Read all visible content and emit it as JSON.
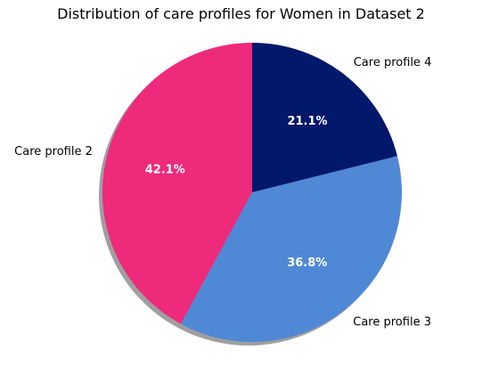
{
  "chart_data": {
    "type": "pie",
    "title": "Distribution of care profiles for Women in Dataset 2",
    "slices": [
      {
        "label": "Care profile 4",
        "value": 21.1,
        "pct_label": "21.1%",
        "color": "#02186b"
      },
      {
        "label": "Care profile 3",
        "value": 36.8,
        "pct_label": "36.8%",
        "color": "#4f89d6"
      },
      {
        "label": "Care profile 2",
        "value": 42.1,
        "pct_label": "42.1%",
        "color": "#ee2a7b"
      }
    ],
    "start_angle_deg": 90,
    "direction": "clockwise",
    "shadow": true
  }
}
